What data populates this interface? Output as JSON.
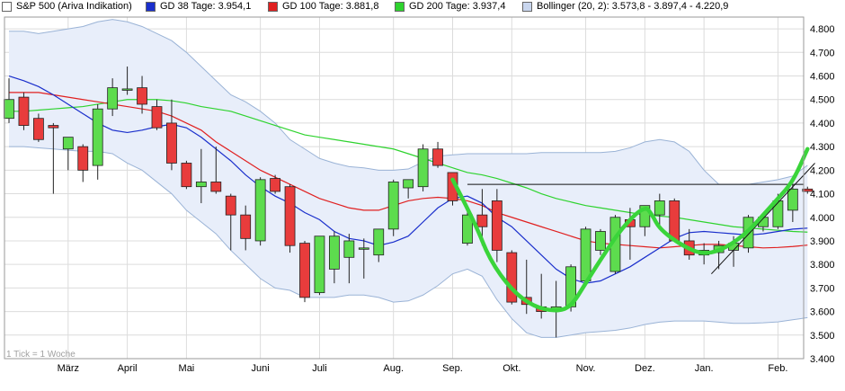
{
  "legend": {
    "main": "S&P 500 (Ariva Indikation)",
    "gd38": "GD 38 Tage: 3.954,1",
    "gd100": "GD 100 Tage: 3.881,8",
    "gd200": "GD 200 Tage: 3.937,4",
    "bollinger": "Bollinger (20, 2): 3.573,8 - 3.897,4 - 4.220,9"
  },
  "watermark": "1 Tick = 1 Woche",
  "colors": {
    "up": "#5ddc4e",
    "down": "#e83c3c",
    "gd38": "#1a2fcc",
    "gd100": "#e02020",
    "gd200": "#2ed32e",
    "bollinger_line": "#9ab3d6",
    "bollinger_fill": "#e8eefa",
    "annotation": "#3ad43a",
    "grid": "#dcdcdc"
  },
  "chart_data": {
    "type": "candlestick",
    "title": "S&P 500 (Ariva Indikation)",
    "interval": "1 Woche",
    "ylim": [
      3400,
      4850
    ],
    "y_ticks": [
      "3.400",
      "3.500",
      "3.600",
      "3.700",
      "3.800",
      "3.900",
      "4.000",
      "4.100",
      "4.200",
      "4.300",
      "4.400",
      "4.500",
      "4.600",
      "4.700",
      "4.800"
    ],
    "x_labels": [
      {
        "label": "März",
        "index": 4
      },
      {
        "label": "April",
        "index": 8
      },
      {
        "label": "Mai",
        "index": 12
      },
      {
        "label": "Juni",
        "index": 17
      },
      {
        "label": "Juli",
        "index": 21
      },
      {
        "label": "Aug.",
        "index": 26
      },
      {
        "label": "Sep.",
        "index": 30
      },
      {
        "label": "Okt.",
        "index": 34
      },
      {
        "label": "Nov.",
        "index": 39
      },
      {
        "label": "Dez.",
        "index": 43
      },
      {
        "label": "Jan.",
        "index": 47
      },
      {
        "label": "Feb.",
        "index": 52
      }
    ],
    "candles": [
      {
        "o": 4420,
        "h": 4590,
        "l": 4400,
        "c": 4500
      },
      {
        "o": 4510,
        "h": 4530,
        "l": 4370,
        "c": 4390
      },
      {
        "o": 4420,
        "h": 4440,
        "l": 4320,
        "c": 4330
      },
      {
        "o": 4390,
        "h": 4400,
        "l": 4100,
        "c": 4380
      },
      {
        "o": 4290,
        "h": 4330,
        "l": 4200,
        "c": 4340
      },
      {
        "o": 4300,
        "h": 4310,
        "l": 4150,
        "c": 4200
      },
      {
        "o": 4220,
        "h": 4480,
        "l": 4160,
        "c": 4460
      },
      {
        "o": 4460,
        "h": 4590,
        "l": 4430,
        "c": 4550
      },
      {
        "o": 4540,
        "h": 4640,
        "l": 4520,
        "c": 4545
      },
      {
        "o": 4550,
        "h": 4600,
        "l": 4440,
        "c": 4480
      },
      {
        "o": 4470,
        "h": 4500,
        "l": 4370,
        "c": 4380
      },
      {
        "o": 4400,
        "h": 4500,
        "l": 4200,
        "c": 4230
      },
      {
        "o": 4230,
        "h": 4240,
        "l": 4120,
        "c": 4130
      },
      {
        "o": 4130,
        "h": 4290,
        "l": 4060,
        "c": 4150
      },
      {
        "o": 4150,
        "h": 4300,
        "l": 4100,
        "c": 4110
      },
      {
        "o": 4090,
        "h": 4100,
        "l": 3860,
        "c": 4010
      },
      {
        "o": 4010,
        "h": 4050,
        "l": 3860,
        "c": 3910
      },
      {
        "o": 3900,
        "h": 4170,
        "l": 3880,
        "c": 4160
      },
      {
        "o": 4165,
        "h": 4180,
        "l": 4100,
        "c": 4110
      },
      {
        "o": 4130,
        "h": 4140,
        "l": 3850,
        "c": 3880
      },
      {
        "o": 3890,
        "h": 3900,
        "l": 3640,
        "c": 3660
      },
      {
        "o": 3680,
        "h": 3920,
        "l": 3670,
        "c": 3920
      },
      {
        "o": 3780,
        "h": 3940,
        "l": 3720,
        "c": 3920
      },
      {
        "o": 3830,
        "h": 3930,
        "l": 3720,
        "c": 3900
      },
      {
        "o": 3870,
        "h": 3910,
        "l": 3740,
        "c": 3870
      },
      {
        "o": 3840,
        "h": 3950,
        "l": 3810,
        "c": 3950
      },
      {
        "o": 3950,
        "h": 4160,
        "l": 3920,
        "c": 4150
      },
      {
        "o": 4125,
        "h": 4160,
        "l": 4080,
        "c": 4160
      },
      {
        "o": 4130,
        "h": 4310,
        "l": 4110,
        "c": 4290
      },
      {
        "o": 4290,
        "h": 4320,
        "l": 4210,
        "c": 4220
      },
      {
        "o": 4190,
        "h": 4190,
        "l": 4050,
        "c": 4070
      },
      {
        "o": 3890,
        "h": 4030,
        "l": 3880,
        "c": 4010
      },
      {
        "o": 4010,
        "h": 4120,
        "l": 3880,
        "c": 3960
      },
      {
        "o": 4070,
        "h": 4120,
        "l": 3810,
        "c": 3860
      },
      {
        "o": 3850,
        "h": 3860,
        "l": 3630,
        "c": 3640
      },
      {
        "o": 3660,
        "h": 3820,
        "l": 3590,
        "c": 3630
      },
      {
        "o": 3620,
        "h": 3760,
        "l": 3570,
        "c": 3600
      },
      {
        "o": 3610,
        "h": 3730,
        "l": 3490,
        "c": 3620
      },
      {
        "o": 3620,
        "h": 3800,
        "l": 3600,
        "c": 3790
      },
      {
        "o": 3730,
        "h": 3960,
        "l": 3710,
        "c": 3950
      },
      {
        "o": 3860,
        "h": 3950,
        "l": 3840,
        "c": 3940
      },
      {
        "o": 3770,
        "h": 4010,
        "l": 3760,
        "c": 4000
      },
      {
        "o": 3990,
        "h": 4040,
        "l": 3820,
        "c": 3960
      },
      {
        "o": 3960,
        "h": 4050,
        "l": 3920,
        "c": 4050
      },
      {
        "o": 4010,
        "h": 4100,
        "l": 3960,
        "c": 4070
      },
      {
        "o": 4070,
        "h": 4080,
        "l": 3900,
        "c": 3900
      },
      {
        "o": 3900,
        "h": 3950,
        "l": 3820,
        "c": 3840
      },
      {
        "o": 3840,
        "h": 3890,
        "l": 3800,
        "c": 3860
      },
      {
        "o": 3850,
        "h": 3900,
        "l": 3780,
        "c": 3880
      },
      {
        "o": 3860,
        "h": 3920,
        "l": 3790,
        "c": 3890
      },
      {
        "o": 3870,
        "h": 4010,
        "l": 3850,
        "c": 4000
      },
      {
        "o": 3960,
        "h": 4020,
        "l": 3940,
        "c": 4000
      },
      {
        "o": 3960,
        "h": 4100,
        "l": 3950,
        "c": 4070
      },
      {
        "o": 4030,
        "h": 4140,
        "l": 3980,
        "c": 4120
      },
      {
        "o": 4120,
        "h": 4130,
        "l": 4100,
        "c": 4110
      }
    ],
    "series": [
      {
        "name": "GD 38 Tage",
        "values": [
          4600,
          4580,
          4555,
          4520,
          4480,
          4440,
          4400,
          4370,
          4360,
          4370,
          4385,
          4395,
          4380,
          4340,
          4290,
          4240,
          4180,
          4130,
          4090,
          4060,
          4020,
          3990,
          3940,
          3910,
          3900,
          3880,
          3895,
          3920,
          3980,
          4040,
          4080,
          4090,
          4060,
          4000,
          3960,
          3900,
          3840,
          3780,
          3740,
          3720,
          3730,
          3760,
          3790,
          3830,
          3870,
          3910,
          3935,
          3940,
          3935,
          3930,
          3925,
          3930,
          3940,
          3950,
          3954
        ]
      },
      {
        "name": "GD 100 Tage",
        "values": [
          4530,
          4530,
          4530,
          4520,
          4510,
          4500,
          4490,
          4480,
          4470,
          4460,
          4450,
          4430,
          4400,
          4370,
          4320,
          4280,
          4240,
          4200,
          4170,
          4140,
          4110,
          4080,
          4060,
          4040,
          4030,
          4030,
          4050,
          4070,
          4080,
          4085,
          4080,
          4070,
          4050,
          4020,
          4000,
          3980,
          3960,
          3940,
          3920,
          3900,
          3890,
          3885,
          3880,
          3875,
          3870,
          3875,
          3880,
          3885,
          3885,
          3880,
          3875,
          3870,
          3872,
          3876,
          3882
        ]
      },
      {
        "name": "GD 200 Tage",
        "values": [
          4450,
          4450,
          4455,
          4460,
          4465,
          4470,
          4480,
          4490,
          4500,
          4500,
          4500,
          4495,
          4485,
          4470,
          4460,
          4450,
          4430,
          4410,
          4390,
          4370,
          4350,
          4340,
          4330,
          4320,
          4310,
          4300,
          4290,
          4270,
          4250,
          4230,
          4210,
          4190,
          4180,
          4165,
          4145,
          4125,
          4100,
          4080,
          4065,
          4050,
          4040,
          4030,
          4020,
          4010,
          4005,
          4000,
          3990,
          3980,
          3970,
          3960,
          3955,
          3950,
          3945,
          3940,
          3937
        ]
      },
      {
        "name": "Bollinger oben",
        "values": [
          4790,
          4790,
          4780,
          4790,
          4800,
          4810,
          4830,
          4840,
          4830,
          4810,
          4780,
          4750,
          4700,
          4640,
          4580,
          4520,
          4490,
          4450,
          4400,
          4330,
          4290,
          4250,
          4230,
          4215,
          4210,
          4200,
          4200,
          4205,
          4235,
          4260,
          4265,
          4270,
          4270,
          4270,
          4270,
          4270,
          4275,
          4275,
          4275,
          4275,
          4275,
          4280,
          4295,
          4320,
          4330,
          4320,
          4280,
          4200,
          4140,
          4140,
          4140,
          4150,
          4160,
          4175,
          4221
        ]
      },
      {
        "name": "Bollinger unten",
        "values": [
          4300,
          4300,
          4295,
          4290,
          4285,
          4280,
          4280,
          4270,
          4230,
          4200,
          4150,
          4100,
          4030,
          3980,
          3930,
          3860,
          3800,
          3740,
          3700,
          3690,
          3660,
          3660,
          3660,
          3670,
          3670,
          3660,
          3640,
          3645,
          3670,
          3710,
          3760,
          3780,
          3750,
          3650,
          3570,
          3510,
          3490,
          3490,
          3500,
          3510,
          3515,
          3520,
          3530,
          3545,
          3555,
          3560,
          3560,
          3560,
          3555,
          3550,
          3550,
          3552,
          3556,
          3565,
          3574
        ]
      }
    ],
    "annotations": {
      "resistance_level": 4140,
      "resistance_from_index": 31,
      "trendline": {
        "from_index": 47.5,
        "from_value": 3760,
        "to_index": 54.5,
        "to_value": 4230
      },
      "hand_drawn_path": [
        [
          30,
          4160
        ],
        [
          31.5,
          3980
        ],
        [
          32.5,
          3820
        ],
        [
          34,
          3690
        ],
        [
          35.5,
          3620
        ],
        [
          37,
          3600
        ],
        [
          38,
          3620
        ],
        [
          39,
          3720
        ],
        [
          40,
          3820
        ],
        [
          41.5,
          3960
        ],
        [
          43,
          4050
        ],
        [
          43.5,
          4010
        ],
        [
          44,
          3950
        ],
        [
          45.5,
          3880
        ],
        [
          47,
          3840
        ],
        [
          48.5,
          3870
        ],
        [
          50,
          3940
        ],
        [
          51,
          4010
        ],
        [
          52,
          4080
        ],
        [
          53,
          4150
        ],
        [
          54,
          4290
        ]
      ]
    }
  }
}
